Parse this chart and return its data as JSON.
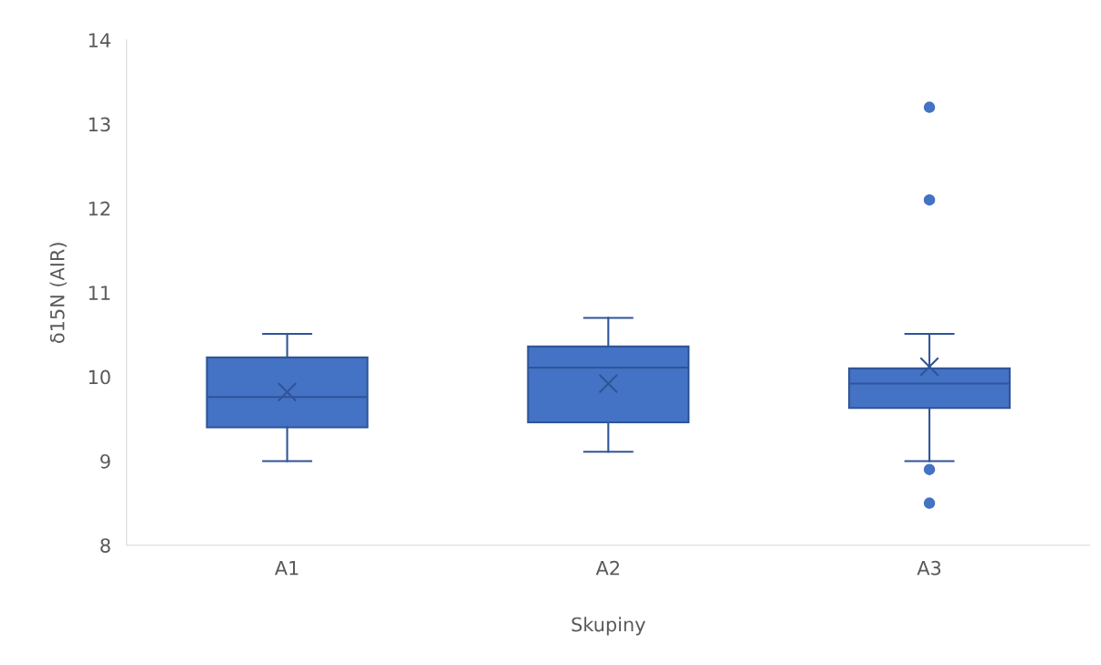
{
  "chart_data": {
    "type": "box",
    "xlabel": "Skupiny",
    "ylabel": "δ15N (AIR)",
    "categories": [
      "A1",
      "A2",
      "A3"
    ],
    "boxes": [
      {
        "low": 9.0,
        "q1": 9.4,
        "median": 9.76,
        "q3": 10.23,
        "high": 10.51,
        "mean": 9.82
      },
      {
        "low": 9.11,
        "q1": 9.46,
        "median": 10.11,
        "q3": 10.36,
        "high": 10.7,
        "mean": 9.92
      },
      {
        "low": 9.0,
        "q1": 9.63,
        "median": 9.92,
        "q3": 10.1,
        "high": 10.51,
        "mean": 10.12,
        "outliers": [
          13.2,
          12.1,
          8.9,
          8.5
        ]
      }
    ],
    "color": "#4472c4",
    "ylim": [
      8,
      14
    ],
    "yticks": [
      8,
      9,
      10,
      11,
      12,
      13,
      14
    ],
    "grid": false,
    "legend": false
  }
}
